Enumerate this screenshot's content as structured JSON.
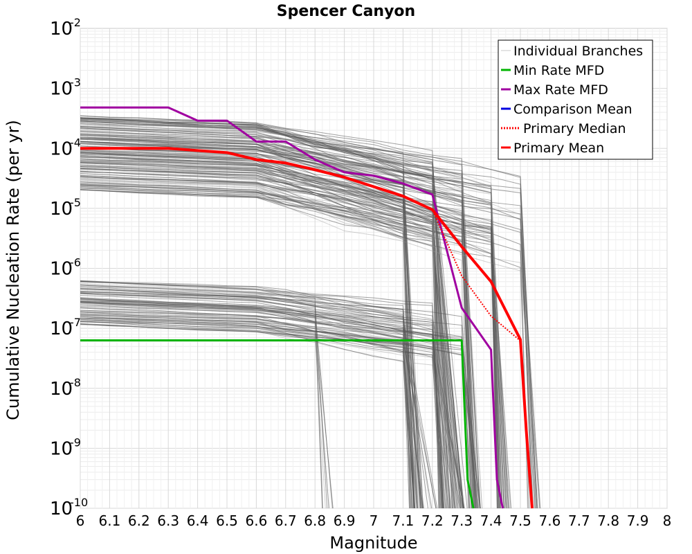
{
  "chart_data": {
    "type": "line",
    "title": "Spencer Canyon",
    "xlabel": "Magnitude",
    "ylabel": "Cumulative Nucleation Rate (per yr)",
    "xlim": [
      6,
      8
    ],
    "ylim_log10": [
      -10,
      -2
    ],
    "y_scale": "log",
    "grid": true,
    "legend_position": "top-right",
    "x_ticks": [
      "6",
      "6.1",
      "6.2",
      "6.3",
      "6.4",
      "6.5",
      "6.6",
      "6.7",
      "6.8",
      "6.9",
      "7",
      "7.1",
      "7.2",
      "7.3",
      "7.4",
      "7.5",
      "7.6",
      "7.7",
      "7.8",
      "7.9",
      "8"
    ],
    "y_ticks": [
      {
        "base": "10",
        "exp": "-2"
      },
      {
        "base": "10",
        "exp": "-3"
      },
      {
        "base": "10",
        "exp": "-4"
      },
      {
        "base": "10",
        "exp": "-5"
      },
      {
        "base": "10",
        "exp": "-6"
      },
      {
        "base": "10",
        "exp": "-7"
      },
      {
        "base": "10",
        "exp": "-8"
      },
      {
        "base": "10",
        "exp": "-9"
      },
      {
        "base": "10",
        "exp": "-10"
      }
    ],
    "legend": [
      {
        "label": "Individual Branches",
        "color": "#c8c8c8",
        "style": "solid"
      },
      {
        "label": "Min Rate MFD",
        "color": "#00b400",
        "style": "solid"
      },
      {
        "label": "Max Rate MFD",
        "color": "#a000a0",
        "style": "solid"
      },
      {
        "label": "Comparison Mean",
        "color": "#0000e0",
        "style": "solid"
      },
      {
        "label": "Primary Median",
        "color": "#ff0000",
        "style": "dotted"
      },
      {
        "label": "Primary Mean",
        "color": "#ff0000",
        "style": "solid"
      }
    ],
    "series": [
      {
        "name": "Min Rate MFD",
        "color": "#00b400",
        "width": 3,
        "style": "solid",
        "x": [
          6.0,
          6.1,
          6.2,
          6.3,
          6.4,
          6.5,
          6.6,
          6.7,
          6.8,
          6.9,
          7.0,
          7.1,
          7.2,
          7.3,
          7.32,
          7.34
        ],
        "y": [
          6.3e-08,
          6.3e-08,
          6.3e-08,
          6.3e-08,
          6.3e-08,
          6.3e-08,
          6.3e-08,
          6.3e-08,
          6.3e-08,
          6.3e-08,
          6.3e-08,
          6.3e-08,
          6.3e-08,
          6.3e-08,
          3e-10,
          1e-10
        ]
      },
      {
        "name": "Max Rate MFD",
        "color": "#a000a0",
        "width": 3,
        "style": "solid",
        "x": [
          6.0,
          6.1,
          6.2,
          6.3,
          6.4,
          6.5,
          6.6,
          6.7,
          6.8,
          6.9,
          7.0,
          7.1,
          7.2,
          7.3,
          7.4,
          7.42,
          7.44
        ],
        "y": [
          0.00048,
          0.00048,
          0.00048,
          0.00048,
          0.00029,
          0.00029,
          0.00013,
          0.00013,
          6.5e-05,
          4e-05,
          3.5e-05,
          2.6e-05,
          1.7e-05,
          2.2e-07,
          4.4e-08,
          3e-10,
          1e-10
        ]
      },
      {
        "name": "Primary Median",
        "color": "#ff0000",
        "width": 2,
        "style": "dotted",
        "x": [
          6.0,
          6.1,
          6.2,
          6.3,
          6.4,
          6.5,
          6.6,
          6.7,
          6.8,
          6.9,
          7.0,
          7.1,
          7.2,
          7.3,
          7.4,
          7.5,
          7.54
        ],
        "y": [
          0.0001,
          0.0001,
          0.0001,
          0.0001,
          9.2e-05,
          8.5e-05,
          6.5e-05,
          5.7e-05,
          4.4e-05,
          3.3e-05,
          2.3e-05,
          1.6e-05,
          9.5e-06,
          7.5e-07,
          1.6e-07,
          6.2e-08,
          1e-10
        ]
      },
      {
        "name": "Primary Mean",
        "color": "#ff0000",
        "width": 4,
        "style": "solid",
        "x": [
          6.0,
          6.1,
          6.2,
          6.3,
          6.4,
          6.5,
          6.6,
          6.7,
          6.8,
          6.9,
          7.0,
          7.1,
          7.2,
          7.3,
          7.4,
          7.5,
          7.52,
          7.54
        ],
        "y": [
          0.0001,
          0.0001,
          0.0001,
          0.0001,
          9.2e-05,
          8.5e-05,
          6.5e-05,
          5.7e-05,
          4.4e-05,
          3.3e-05,
          2.3e-05,
          1.6e-05,
          9.5e-06,
          2.3e-06,
          6e-07,
          6.5e-08,
          2e-09,
          1e-10
        ]
      }
    ]
  }
}
